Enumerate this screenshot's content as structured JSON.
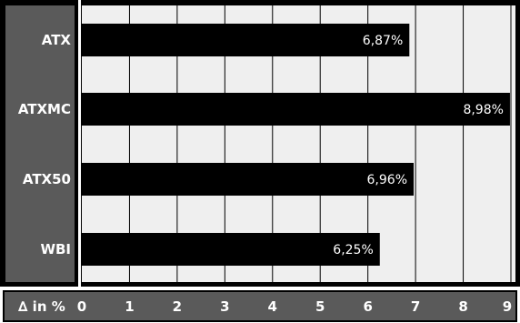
{
  "chart_data": {
    "type": "bar",
    "orientation": "horizontal",
    "categories": [
      "ATX",
      "ATXMC",
      "ATX50",
      "WBI"
    ],
    "values": [
      6.87,
      8.98,
      6.96,
      6.25
    ],
    "value_labels": [
      "6,87%",
      "8,98%",
      "6,96%",
      "6,25%"
    ],
    "xlabel": "∆ in %",
    "xlim": [
      0,
      9
    ],
    "xticks": [
      "0",
      "1",
      "2",
      "3",
      "4",
      "5",
      "6",
      "7",
      "8",
      "9"
    ],
    "grid": true,
    "colors": {
      "bar": "#000000",
      "plot_background": "#efefef",
      "panel": "#5a5a5a",
      "grid": "#000000",
      "text": "#ffffff"
    }
  }
}
